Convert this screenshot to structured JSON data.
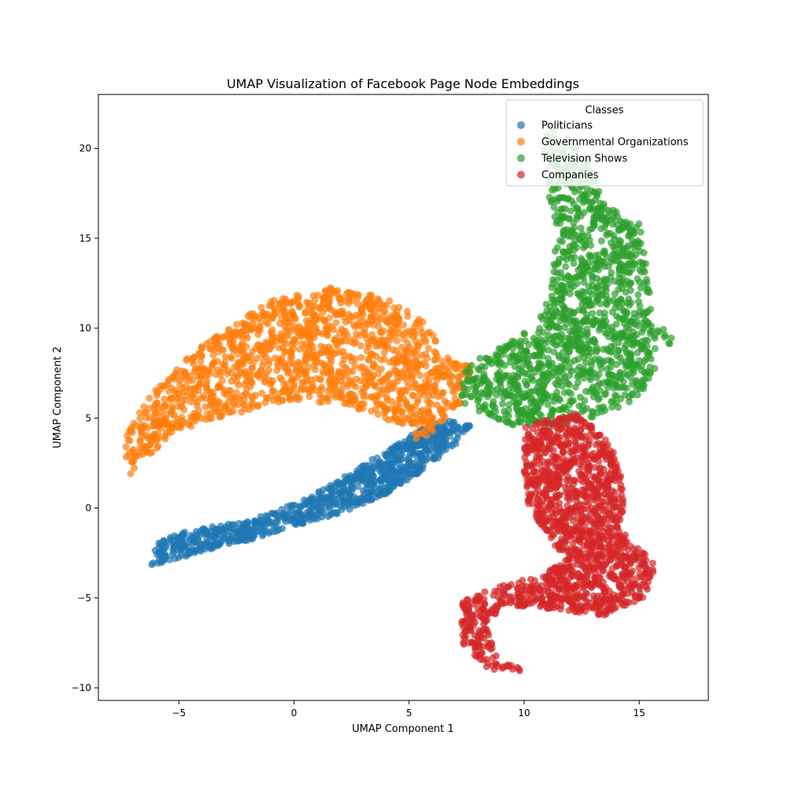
{
  "chart_data": {
    "type": "scatter",
    "title": "UMAP Visualization of Facebook Page Node Embeddings",
    "xlabel": "UMAP Component 1",
    "ylabel": "UMAP Component 2",
    "xlim": [
      -8.5,
      18.0
    ],
    "ylim": [
      -10.7,
      23.0
    ],
    "xticks": [
      -5,
      0,
      5,
      10,
      15
    ],
    "yticks": [
      -10,
      -5,
      0,
      5,
      10,
      15,
      20
    ],
    "xtick_labels": [
      "−5",
      "0",
      "5",
      "10",
      "15"
    ],
    "ytick_labels": [
      "−10",
      "−5",
      "0",
      "5",
      "10",
      "15",
      "20"
    ],
    "grid": false,
    "legend": {
      "title": "Classes",
      "placement": "top-right"
    },
    "series": [
      {
        "name": "Politicians",
        "color": "#1f77b4",
        "shape": [
          [
            -6.2,
            -3.2
          ],
          [
            -6.0,
            -2.0
          ],
          [
            -5.0,
            -1.4
          ],
          [
            -3.0,
            -0.9
          ],
          [
            -1.0,
            -0.3
          ],
          [
            0.5,
            0.5
          ],
          [
            2.0,
            1.6
          ],
          [
            3.5,
            2.8
          ],
          [
            5.0,
            4.0
          ],
          [
            6.5,
            5.0
          ],
          [
            7.8,
            4.6
          ],
          [
            7.0,
            3.5
          ],
          [
            5.5,
            2.0
          ],
          [
            4.0,
            0.8
          ],
          [
            2.0,
            -0.3
          ],
          [
            0.0,
            -1.0
          ],
          [
            -2.0,
            -1.8
          ],
          [
            -4.0,
            -2.4
          ],
          [
            -5.5,
            -3.0
          ]
        ]
      },
      {
        "name": "Governmental Organizations",
        "color": "#ff7f0e",
        "shape": [
          [
            -7.2,
            1.8
          ],
          [
            -7.4,
            3.8
          ],
          [
            -6.5,
            6.0
          ],
          [
            -5.0,
            8.0
          ],
          [
            -3.0,
            10.0
          ],
          [
            -1.0,
            11.5
          ],
          [
            1.5,
            12.3
          ],
          [
            4.0,
            11.7
          ],
          [
            5.8,
            10.2
          ],
          [
            6.5,
            8.5
          ],
          [
            7.8,
            7.8
          ],
          [
            7.5,
            6.2
          ],
          [
            6.5,
            4.8
          ],
          [
            5.5,
            3.6
          ],
          [
            4.8,
            4.4
          ],
          [
            3.6,
            5.2
          ],
          [
            2.0,
            5.8
          ],
          [
            0.0,
            5.9
          ],
          [
            -2.0,
            5.4
          ],
          [
            -4.0,
            4.8
          ],
          [
            -5.5,
            3.9
          ],
          [
            -6.5,
            2.6
          ]
        ]
      },
      {
        "name": "Television Shows",
        "color": "#2ca02c",
        "shape": [
          [
            10.6,
            20.2
          ],
          [
            11.5,
            21.5
          ],
          [
            12.6,
            19.5
          ],
          [
            13.6,
            16.8
          ],
          [
            15.0,
            15.8
          ],
          [
            15.5,
            12.5
          ],
          [
            15.5,
            10.2
          ],
          [
            16.8,
            10.0
          ],
          [
            16.0,
            8.5
          ],
          [
            15.0,
            6.2
          ],
          [
            13.5,
            5.2
          ],
          [
            11.5,
            4.6
          ],
          [
            9.5,
            4.6
          ],
          [
            8.2,
            5.3
          ],
          [
            7.0,
            6.0
          ],
          [
            7.5,
            7.8
          ],
          [
            9.0,
            9.2
          ],
          [
            10.5,
            10.0
          ],
          [
            11.2,
            12.5
          ],
          [
            11.4,
            15.0
          ],
          [
            11.0,
            18.0
          ]
        ]
      },
      {
        "name": "Companies",
        "color": "#d62728",
        "shape": [
          [
            10.0,
            4.6
          ],
          [
            12.3,
            5.3
          ],
          [
            13.8,
            3.6
          ],
          [
            14.4,
            1.0
          ],
          [
            14.2,
            -1.2
          ],
          [
            15.0,
            -2.2
          ],
          [
            15.8,
            -3.2
          ],
          [
            15.2,
            -5.0
          ],
          [
            13.5,
            -6.0
          ],
          [
            11.0,
            -5.6
          ],
          [
            9.2,
            -5.4
          ],
          [
            8.3,
            -6.4
          ],
          [
            8.8,
            -8.3
          ],
          [
            10.3,
            -9.1
          ],
          [
            8.5,
            -9.0
          ],
          [
            7.3,
            -7.5
          ],
          [
            7.3,
            -5.2
          ],
          [
            8.5,
            -4.5
          ],
          [
            10.5,
            -3.8
          ],
          [
            11.8,
            -3.0
          ],
          [
            11.0,
            -1.5
          ],
          [
            10.2,
            0.0
          ],
          [
            10.0,
            2.0
          ]
        ]
      }
    ]
  }
}
